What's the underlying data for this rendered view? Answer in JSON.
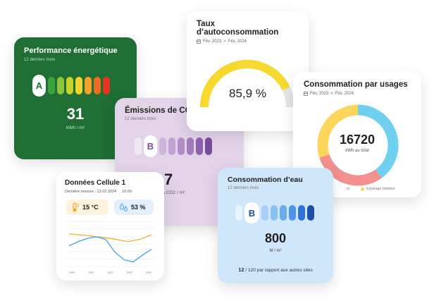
{
  "performance": {
    "title": "Performance énergétique",
    "subtitle": "12 derniers mois",
    "grade": "A",
    "value": "31",
    "unit": "kWh / m²",
    "colors": [
      "#ffffff",
      "#3aa43b",
      "#8cc63f",
      "#c8d22c",
      "#f2d22f",
      "#f2a22c",
      "#ee6b24",
      "#e63323"
    ]
  },
  "emissions": {
    "title": "Émissions de CO₂",
    "subtitle": "12 derniers mois",
    "grade": "B",
    "value": "7",
    "unit": "kg CO2 / m²",
    "colors": [
      "#f1e6f4",
      "#ffffff",
      "#cfb4da",
      "#c2a2d1",
      "#b28dc6",
      "#a27bbb",
      "#8d62ab",
      "#7a4d9c"
    ]
  },
  "autoconsommation": {
    "title": "Taux d’autoconsommation",
    "date_from": "Fév. 2023",
    "date_sep": ">",
    "date_to": "Fév. 2024",
    "value": "85,9 %",
    "ratio": 0.859,
    "color": "#f6d92e"
  },
  "usages": {
    "title": "Consommation par usages",
    "date_from": "Fév. 2023",
    "date_sep": ">",
    "date_to": "Fév. 2024",
    "total": "16720",
    "total_unit": "kWh au total",
    "legend_partial": "rs",
    "legend_item": "Eclairage intérieur",
    "segments": [
      {
        "share": 0.4,
        "color": "#6fd0ef"
      },
      {
        "share": 0.3,
        "color": "#f48f8f"
      },
      {
        "share": 0.3,
        "color": "#fbd65b"
      }
    ]
  },
  "cellule": {
    "title": "Données Cellule 1",
    "last_label": "Dernière mesure : 13.02.2024",
    "last_time": "16:00",
    "temperature": "15 °C",
    "humidity": "53 %",
    "temp_color": "#f5a623",
    "hum_color": "#4aa8e8",
    "x_ticks": [
      "18H",
      "20H",
      "24H",
      "04H",
      "08H"
    ],
    "temp_series": [
      0.72,
      0.7,
      0.67,
      0.64,
      0.6,
      0.55,
      0.6,
      0.7
    ],
    "hum_series": [
      0.46,
      0.55,
      0.62,
      0.66,
      0.6,
      0.32,
      0.15,
      0.1,
      0.25,
      0.38
    ]
  },
  "eau": {
    "title": "Consommation d’eau",
    "subtitle": "12 derniers mois",
    "grade": "B",
    "value": "800",
    "unit": "M / m²",
    "rank": "12",
    "rank_total": "/ 120",
    "rank_text": "par rapport aux autres sites",
    "colors": [
      "#eaf4fe",
      "#ffffff",
      "#a7cff7",
      "#8cc0f3",
      "#6aaaee",
      "#4f93e6",
      "#2f72d8",
      "#1e50a8"
    ]
  }
}
